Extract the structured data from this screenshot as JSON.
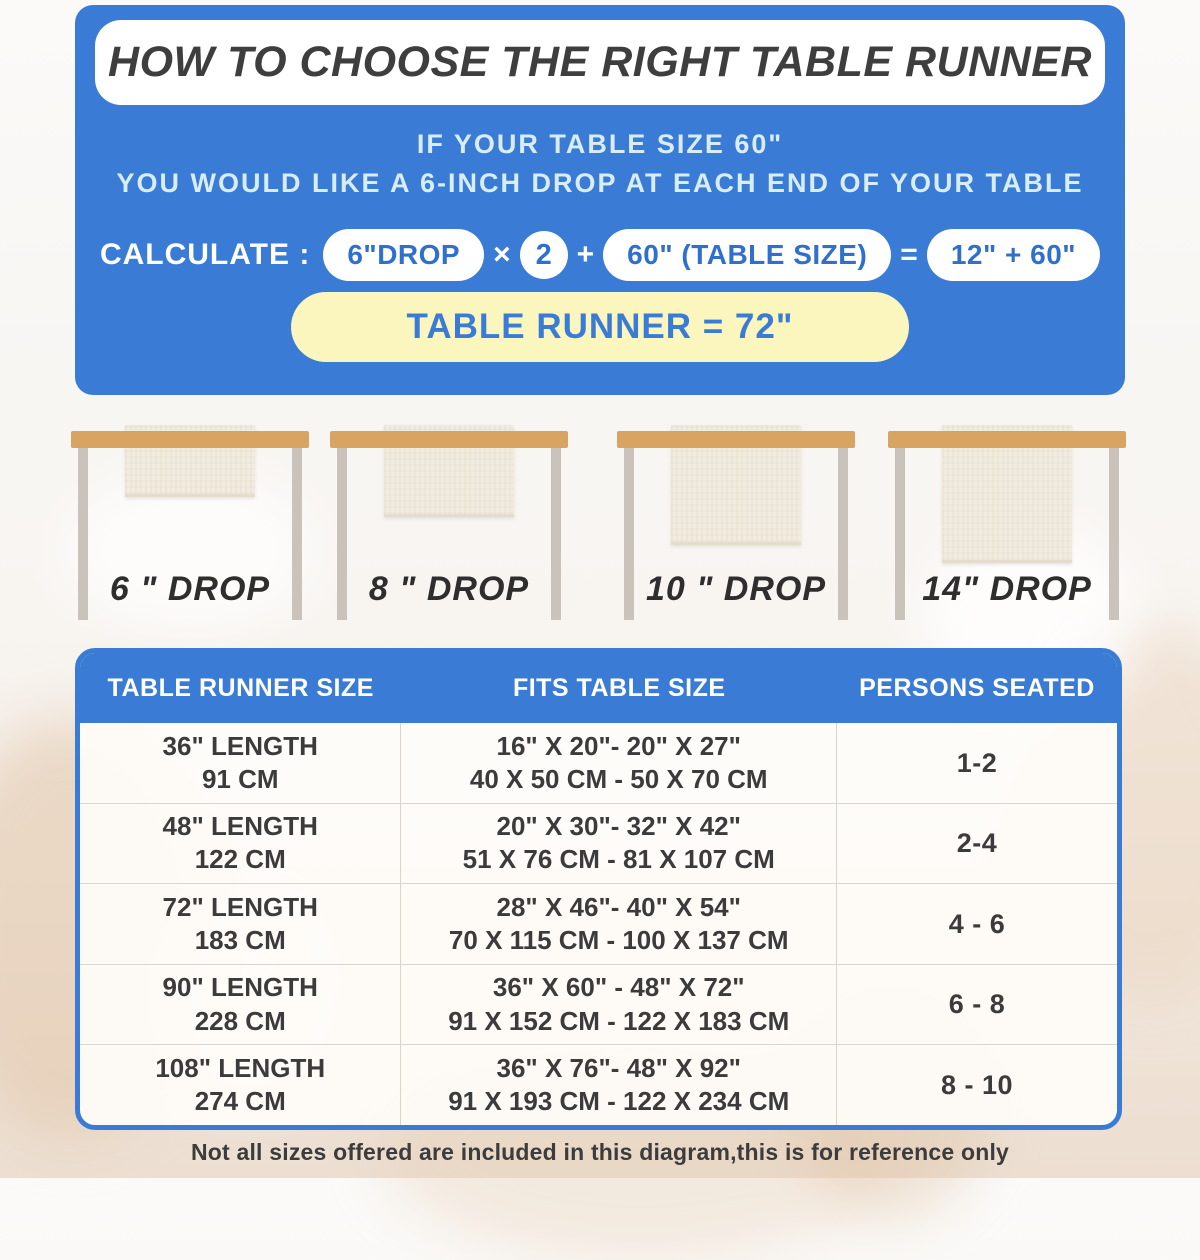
{
  "hero": {
    "title": "HOW TO CHOOSE THE RIGHT TABLE RUNNER",
    "subtitle_line1": "IF YOUR TABLE SIZE 60\"",
    "subtitle_line2": "YOU WOULD LIKE A 6-INCH DROP AT EACH END OF YOUR TABLE",
    "calc": {
      "label": "CALCULATE :",
      "drop_pill": "6\"DROP",
      "times": "×",
      "multiplier": "2",
      "plus": "+",
      "table_size_pill": "60\" (TABLE SIZE)",
      "equals": "=",
      "sum_pill": "12\" + 60\"",
      "result": "TABLE RUNNER = 72\""
    }
  },
  "drops": [
    {
      "label": "6 \" DROP"
    },
    {
      "label": "8 \" DROP"
    },
    {
      "label": "10 \" DROP"
    },
    {
      "label": "14\" DROP"
    }
  ],
  "size_table": {
    "headers": [
      "TABLE RUNNER SIZE",
      "FITS TABLE SIZE",
      "PERSONS SEATED"
    ],
    "rows": [
      {
        "len_in": "36\" LENGTH",
        "len_cm": "91 CM",
        "fits_in": "16\" X 20\"- 20\" X 27\"",
        "fits_cm": "40 X 50 CM - 50 X 70 CM",
        "persons": "1-2"
      },
      {
        "len_in": "48\" LENGTH",
        "len_cm": "122 CM",
        "fits_in": "20\" X 30\"- 32\" X 42\"",
        "fits_cm": "51 X 76 CM - 81 X 107 CM",
        "persons": "2-4"
      },
      {
        "len_in": "72\" LENGTH",
        "len_cm": "183 CM",
        "fits_in": "28\" X 46\"- 40\" X 54\"",
        "fits_cm": "70 X 115 CM - 100 X 137 CM",
        "persons": "4 - 6"
      },
      {
        "len_in": "90\" LENGTH",
        "len_cm": "228 CM",
        "fits_in": "36\" X 60\" - 48\" X 72\"",
        "fits_cm": "91 X 152 CM - 122 X 183 CM",
        "persons": "6 - 8"
      },
      {
        "len_in": "108\" LENGTH",
        "len_cm": "274 CM",
        "fits_in": "36\" X 76\"- 48\" X 92\"",
        "fits_cm": "91 X 193 CM - 122 X 234 CM",
        "persons": "8 - 10"
      }
    ]
  },
  "footnote": "Not all sizes offered are included in this diagram,this is for reference only",
  "colors": {
    "accent_blue": "#3a7cd5",
    "result_yellow": "#faf6bd",
    "tabletop_wood": "#d9a462",
    "table_leg_gray": "#c9c3bc",
    "runner_cream": "#f1ecdf",
    "title_dark": "#3e3e3e",
    "body_text": "#3b3b3b",
    "subtitle_light_blue": "#d8edf8"
  }
}
